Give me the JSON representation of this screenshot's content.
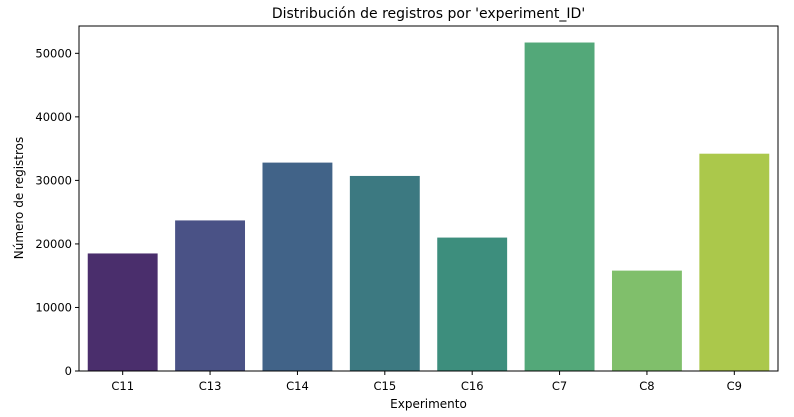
{
  "chart_data": {
    "type": "bar",
    "title": "Distribución de registros por 'experiment_ID'",
    "xlabel": "Experimento",
    "ylabel": "Número de registros",
    "categories": [
      "C11",
      "C13",
      "C14",
      "C15",
      "C16",
      "C7",
      "C8",
      "C9"
    ],
    "values": [
      18500,
      23700,
      32800,
      30700,
      21000,
      51700,
      15800,
      34200
    ],
    "colors": [
      "#4a2e6c",
      "#4a5286",
      "#416388",
      "#3c7981",
      "#3d8e7d",
      "#53a879",
      "#80bf6b",
      "#abc84b"
    ],
    "ylim": [
      0,
      54300
    ],
    "yticks": [
      0,
      10000,
      20000,
      30000,
      40000,
      50000
    ],
    "grid": false,
    "legend": "none"
  }
}
